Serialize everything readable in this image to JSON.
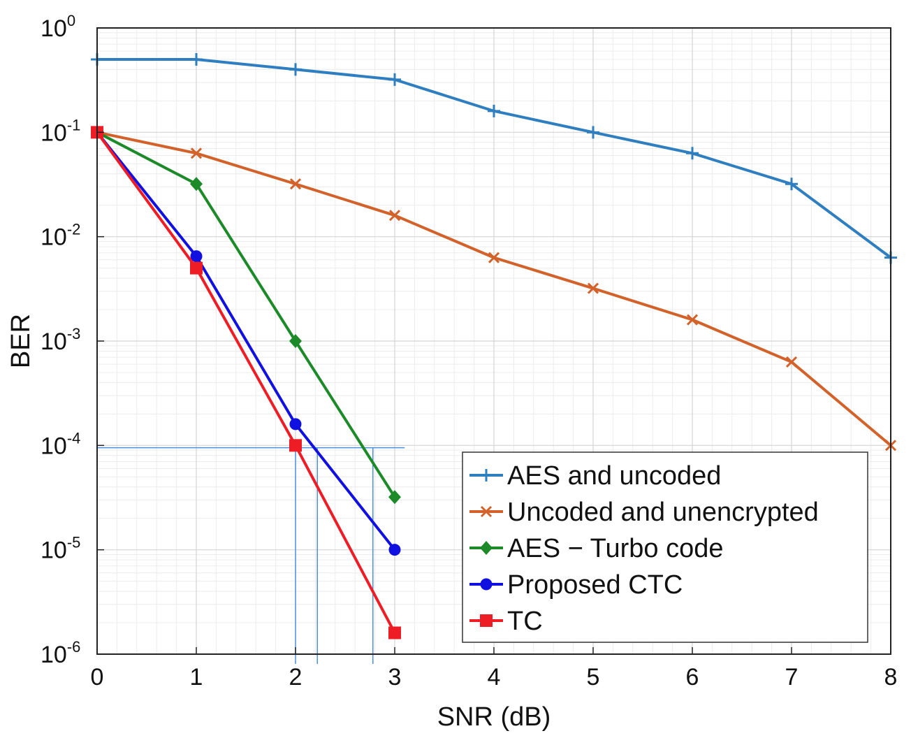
{
  "chart_data": {
    "type": "line",
    "xlabel": "SNR (dB)",
    "ylabel": "BER",
    "yscale": "log",
    "xlim": [
      0,
      8
    ],
    "ylim": [
      1e-06,
      1
    ],
    "grid": true,
    "legend_position": "bottom-right",
    "x_ticks": [
      "0",
      "1",
      "2",
      "3",
      "4",
      "5",
      "6",
      "7",
      "8"
    ],
    "y_ticks": [
      {
        "base": "10",
        "exp": "0"
      },
      {
        "base": "10",
        "exp": "-1"
      },
      {
        "base": "10",
        "exp": "-2"
      },
      {
        "base": "10",
        "exp": "-3"
      },
      {
        "base": "10",
        "exp": "-4"
      },
      {
        "base": "10",
        "exp": "-5"
      },
      {
        "base": "10",
        "exp": "-6"
      }
    ],
    "series": [
      {
        "name": "AES and uncoded",
        "color": "#2f7fc0",
        "marker": "plus",
        "x": [
          0,
          1,
          2,
          3,
          4,
          5,
          6,
          7,
          8
        ],
        "y": [
          0.5,
          0.5,
          0.4,
          0.32,
          0.16,
          0.1,
          0.063,
          0.032,
          0.0063
        ]
      },
      {
        "name": "Uncoded and unencrypted",
        "color": "#d2622a",
        "marker": "x",
        "x": [
          0,
          1,
          2,
          3,
          4,
          5,
          6,
          7,
          8
        ],
        "y": [
          0.1,
          0.063,
          0.032,
          0.016,
          0.0063,
          0.0032,
          0.0016,
          0.00063,
          0.0001
        ]
      },
      {
        "name": "AES − Turbo code",
        "color": "#1c8a28",
        "marker": "diamond",
        "x": [
          0,
          1,
          2,
          3
        ],
        "y": [
          0.1,
          0.032,
          0.001,
          3.2e-05
        ]
      },
      {
        "name": "Proposed CTC",
        "color": "#1010e0",
        "marker": "circle",
        "x": [
          0,
          1,
          2,
          3
        ],
        "y": [
          0.1,
          0.0065,
          0.00016,
          1e-05
        ]
      },
      {
        "name": "TC",
        "color": "#ee1c25",
        "marker": "square",
        "x": [
          0,
          1,
          2,
          3
        ],
        "y": [
          0.1,
          0.005,
          0.0001,
          1.6e-06
        ]
      }
    ],
    "annotations": {
      "color": "#4a90e2",
      "threshold_ber": 9.5e-05,
      "threshold_x_range": [
        0,
        3.1
      ],
      "vertical_lines_snr": [
        2.0,
        2.22,
        2.78
      ]
    }
  }
}
